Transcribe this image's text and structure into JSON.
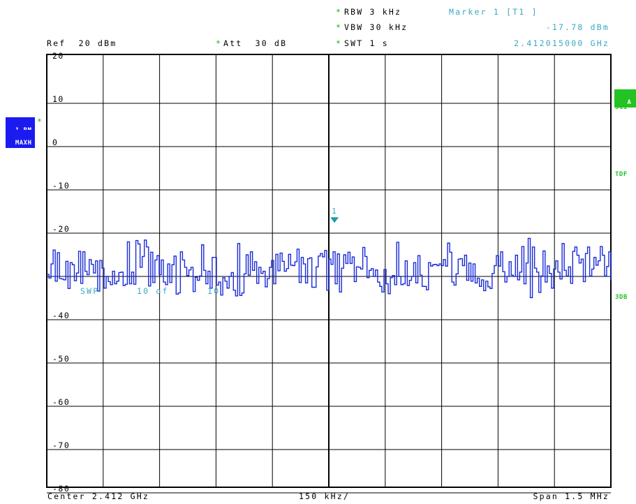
{
  "header": {
    "rbw": "RBW 3 kHz",
    "vbw": "VBW 30 kHz",
    "swt": "SWT 1 s",
    "ref": "Ref  20 dBm",
    "att": "Att  30 dB",
    "marker_title": "Marker 1 [T1 ]",
    "marker_level": "-17.78 dBm",
    "marker_freq": "2.412015000 GHz",
    "star": "*"
  },
  "left_badges": {
    "trace": "1 RM",
    "detector": "MAXH"
  },
  "right_badges": {
    "a": "A",
    "sgl": "SGI",
    "tdf": "TDF",
    "threedb": "3DB"
  },
  "sweep_text": {
    "swp": "SWP",
    "count": "10 of",
    "total": "10"
  },
  "footer": {
    "center": "Center 2.412 GHz",
    "div": "150 kHz/",
    "span": "Span 1.5 MHz"
  },
  "colors": {
    "trace": "#1a2bd9",
    "marker": "#1e9aa8",
    "grid": "#000000",
    "badge_bg": "#1b1bf0",
    "badge_green": "#22c322"
  },
  "chart_data": {
    "type": "line",
    "ylim": [
      -85,
      20
    ],
    "yticks": [
      20,
      10,
      0,
      -10,
      -20,
      -30,
      -40,
      -50,
      -60,
      -70,
      -80
    ],
    "ytick_labels": [
      "20",
      "10",
      "0",
      "-10",
      "-20",
      "",
      "-40",
      "-50",
      "-60",
      "-70",
      "-80"
    ],
    "xlim": [
      2.41125,
      2.41275
    ],
    "x_unit": "GHz",
    "center_ghz": 2.412,
    "span_mhz": 1.5,
    "marker": {
      "label": "1",
      "x": 2.412015,
      "y": -17.78
    },
    "series": [
      {
        "values": [
          -29.5,
          -30.4,
          -27.1,
          -23.9,
          -31.1,
          -24.5,
          -30.5,
          -30.6,
          -30.8,
          -26.5,
          -32.8,
          -26.8,
          -27.3,
          -31.0,
          -29.2,
          -24.2,
          -31.6,
          -24.3,
          -28.8,
          -29.6,
          -26.1,
          -27.2,
          -29.2,
          -26.4,
          -33.4,
          -26.3,
          -28.1,
          -32.7,
          -30.0,
          -31.2,
          -31.9,
          -28.8,
          -31.7,
          -31.1,
          -29.1,
          -29.0,
          -32.1,
          -31.8,
          -22.0,
          -31.7,
          -29.0,
          -31.8,
          -21.7,
          -22.5,
          -27.9,
          -25.4,
          -21.6,
          -23.2,
          -32.2,
          -24.4,
          -31.4,
          -26.2,
          -25.2,
          -29.6,
          -26.2,
          -31.3,
          -31.9,
          -27.1,
          -31.4,
          -27.3,
          -25.3,
          -34.1,
          -33.8,
          -24.3,
          -26.2,
          -27.9,
          -29.8,
          -28.5,
          -27.9,
          -33.5,
          -30.2,
          -30.9,
          -29.9,
          -22.7,
          -28.6,
          -31.7,
          -28.8,
          -32.7,
          -25.6,
          -25.6,
          -32.0,
          -31.3,
          -34.3,
          -30.3,
          -31.1,
          -32.7,
          -30.0,
          -29.1,
          -33.2,
          -34.5,
          -22.4,
          -34.4,
          -33.8,
          -29.4,
          -25.0,
          -29.7,
          -24.3,
          -28.6,
          -26.6,
          -31.6,
          -27.9,
          -29.3,
          -28.8,
          -32.4,
          -30.5,
          -27.9,
          -26.3,
          -31.7,
          -24.9,
          -28.7,
          -24.6,
          -26.5,
          -28.8,
          -28.2,
          -24.9,
          -27.4,
          -27.5,
          -26.6,
          -23.7,
          -31.4,
          -25.6,
          -27.1,
          -31.5,
          -25.9,
          -25.7,
          -32.5,
          -32.5,
          -27.8,
          -25.3,
          -24.7,
          -25.5,
          -24.0,
          -33.2,
          -26.0,
          -27.2,
          -24.3,
          -31.7,
          -24.8,
          -33.6,
          -28.1,
          -25.0,
          -27.0,
          -24.4,
          -27.0,
          -25.5,
          -31.2,
          -27.8,
          -27.9,
          -28.3,
          -23.3,
          -25.4,
          -30.3,
          -28.6,
          -28.2,
          -30.0,
          -28.5,
          -31.3,
          -32.3,
          -33.6,
          -28.4,
          -31.7,
          -34.0,
          -30.3,
          -29.8,
          -31.9,
          -22.1,
          -30.0,
          -31.9,
          -31.7,
          -26.4,
          -32.1,
          -30.9,
          -30.0,
          -26.8,
          -31.5,
          -25.2,
          -29.7,
          -32.3,
          -32.3,
          -33.1,
          -26.8,
          -27.6,
          -27.3,
          -27.2,
          -27.5,
          -27.1,
          -27.5,
          -26.1,
          -27.6,
          -22.3,
          -24.4,
          -31.3,
          -32.0,
          -29.4,
          -26.0,
          -25.9,
          -27.5,
          -25.1,
          -30.9,
          -26.9,
          -31.1,
          -27.1,
          -31.5,
          -30.4,
          -32.3,
          -30.8,
          -33.3,
          -31.1,
          -32.4,
          -32.8,
          -29.3,
          -27.5,
          -25.2,
          -27.6,
          -24.3,
          -28.9,
          -31.3,
          -30.0,
          -26.6,
          -29.7,
          -30.0,
          -25.1,
          -30.8,
          -29.0,
          -23.1,
          -31.7,
          -26.9,
          -21.2,
          -34.9,
          -23.2,
          -28.1,
          -29.0,
          -33.7,
          -29.9,
          -24.1,
          -31.3,
          -27.6,
          -29.3,
          -32.7,
          -28.3,
          -26.4,
          -29.0,
          -30.6,
          -22.4,
          -28.6,
          -29.9,
          -27.8,
          -31.6,
          -24.2,
          -23.2,
          -25.1,
          -26.9,
          -26.0,
          -31.2,
          -24.7,
          -23.2,
          -29.9,
          -28.3,
          -25.6,
          -27.4,
          -26.4,
          -23.1,
          -25.1,
          -29.9,
          -27.7,
          -24.3,
          -30.9
        ]
      }
    ]
  }
}
